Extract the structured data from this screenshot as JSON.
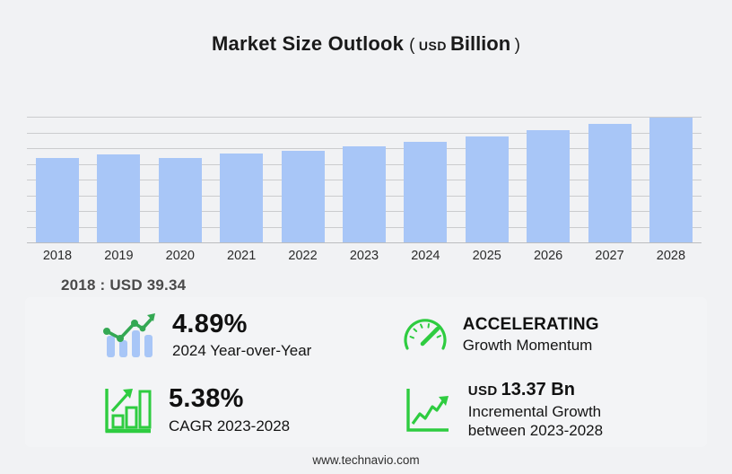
{
  "title": {
    "main": "Market Size Outlook",
    "paren_open": "(",
    "currency": "USD",
    "unit": "Billion",
    "paren_close": ")"
  },
  "chart_data": {
    "type": "bar",
    "categories": [
      "2018",
      "2019",
      "2020",
      "2021",
      "2022",
      "2023",
      "2024",
      "2025",
      "2026",
      "2027",
      "2028"
    ],
    "values": [
      39.34,
      41.3,
      39.6,
      41.4,
      42.9,
      45.0,
      47.2,
      49.6,
      52.4,
      55.3,
      58.4
    ],
    "title": "Market Size Outlook (USD Billion)",
    "xlabel": "",
    "ylabel": "",
    "ylim": [
      0,
      58.8
    ],
    "grid": true,
    "legend": false,
    "bar_color": "#a8c6f7",
    "annotation": "2018 : USD  39.34"
  },
  "stats": [
    {
      "icon": "trend-bars-icon",
      "value": "4.89%",
      "label": "2024 Year-over-Year"
    },
    {
      "icon": "gauge-icon",
      "value": "ACCELERATING",
      "label": "Growth Momentum"
    },
    {
      "icon": "chart-growth-icon",
      "value": "5.38%",
      "label": "CAGR 2023-2028"
    },
    {
      "icon": "line-growth-icon",
      "value_prefix": "USD",
      "value": "13.37 Bn",
      "label": "Incremental Growth",
      "label2": "between 2023-2028"
    }
  ],
  "footer": {
    "url": "www.technavio.com"
  },
  "colors": {
    "background": "#f1f2f4",
    "bar": "#a8c6f7",
    "grid": "#cbccce",
    "icon_green": "#2ecc40",
    "trend_green": "#34a853"
  }
}
